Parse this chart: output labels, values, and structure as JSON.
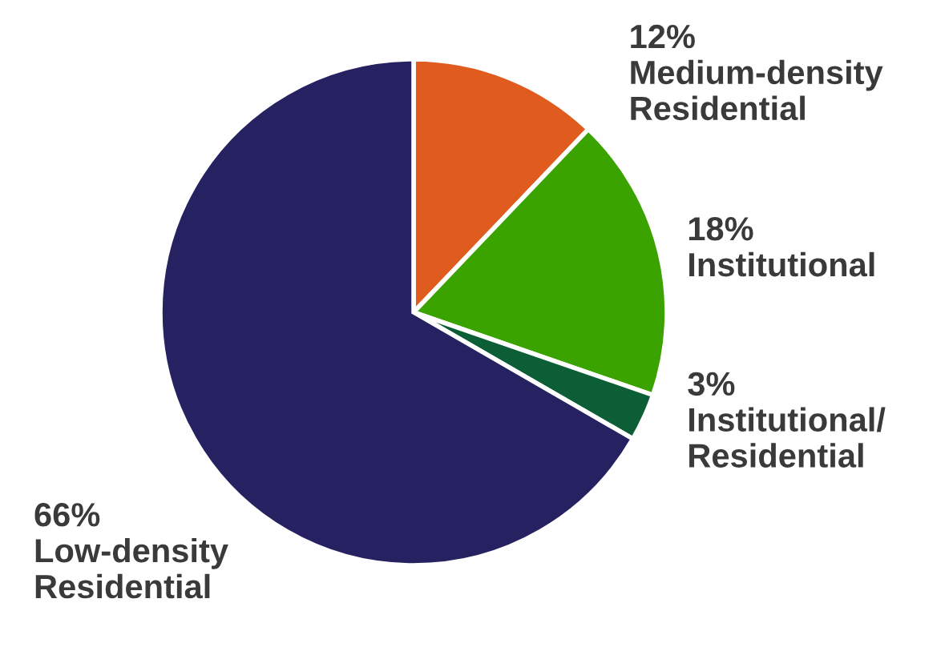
{
  "chart_data": {
    "type": "pie",
    "categories": [
      "Medium-density\nResidential",
      "Institutional",
      "Institutional/\nResidential",
      "Low-density\nResidential"
    ],
    "values": [
      12,
      18,
      3,
      66
    ],
    "value_labels": [
      "12%",
      "18%",
      "3%",
      "66%"
    ],
    "colors": [
      "#e05c1e",
      "#3aa300",
      "#0b5e36",
      "#262160"
    ]
  }
}
